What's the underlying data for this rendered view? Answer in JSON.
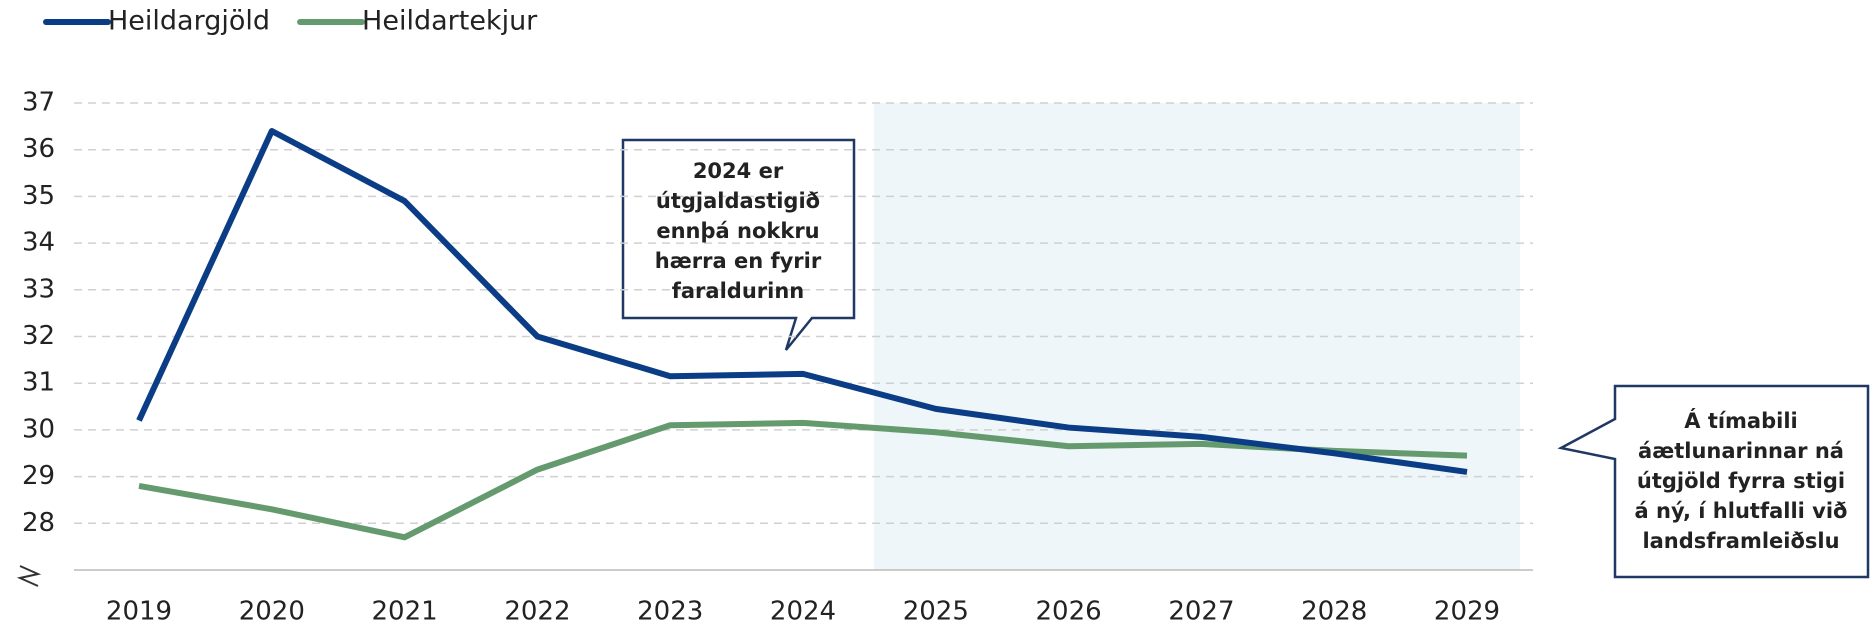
{
  "chart_data": {
    "type": "line",
    "categories": [
      "2019",
      "2020",
      "2021",
      "2022",
      "2023",
      "2024",
      "2025",
      "2026",
      "2027",
      "2028",
      "2029"
    ],
    "series": [
      {
        "name": "Heildargjöld",
        "color": "#0b3d86",
        "values": [
          30.2,
          36.4,
          34.9,
          32.0,
          31.15,
          31.2,
          30.45,
          30.05,
          29.85,
          29.5,
          29.1
        ]
      },
      {
        "name": "Heildartekjur",
        "color": "#659a6e",
        "values": [
          28.8,
          28.3,
          27.7,
          29.15,
          30.1,
          30.15,
          29.95,
          29.65,
          29.7,
          29.55,
          29.45
        ]
      }
    ],
    "ylim": [
      27,
      37
    ],
    "yticks": [
      28,
      29,
      30,
      31,
      32,
      33,
      34,
      35,
      36,
      37
    ],
    "grid": true,
    "annotations": [
      {
        "lines": [
          "2024 er",
          "útgjaldastigið",
          "ennþá nokkru",
          "hærra en fyrir",
          "faraldurinn"
        ]
      },
      {
        "lines": [
          "Á tímabili",
          "áætlunarinnar ná",
          "útgjöld fyrra stigi",
          "á ný, í hlutfalli við",
          "landsframleiðslu"
        ]
      }
    ]
  }
}
